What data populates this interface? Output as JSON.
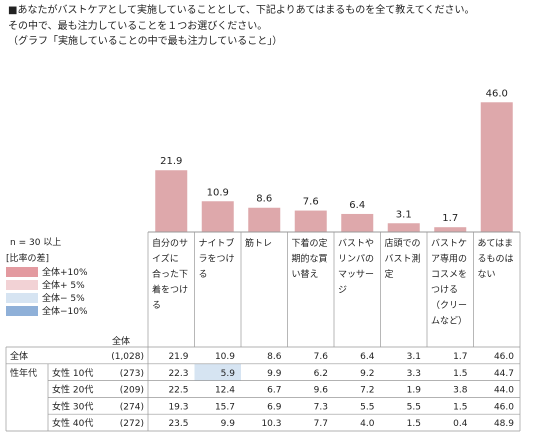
{
  "question": {
    "line1": "■あなたがバストケアとして実施していることとして、下記よりあてはまるものを全て教えてください。",
    "line2": "その中で、最も注力していることを１つお選びください。",
    "line3": "（グラフ「実施していることの中で最も注力していること」）"
  },
  "n_note": "n = 30  以上",
  "legend": {
    "title": "[比率の差]",
    "items": [
      {
        "label": "全体+10%",
        "color": "#e39aa0"
      },
      {
        "label": "全体+ 5%",
        "color": "#f2d2d5"
      },
      {
        "label": "全体− 5%",
        "color": "#d6e4f2"
      },
      {
        "label": "全体−10%",
        "color": "#8fb0d8"
      }
    ]
  },
  "colors": {
    "bar": "#dea8ab",
    "table_border": "#999999",
    "highlight_low5": "#d6e4f2"
  },
  "chart_data": {
    "type": "bar",
    "categories": [
      "自分のサイズに合った下着をつける",
      "ナイトブラをつける",
      "筋トレ",
      "下着の定期的な買い替え",
      "バストやリンパのマッサージ",
      "店頭でのバスト測定",
      "バストケア専用のコスメをつける（クリームなど）",
      "あてはまるものはない"
    ],
    "category_lines": [
      [
        "自分のサ",
        "イズに",
        "合った下",
        "着をつけ",
        "る"
      ],
      [
        "ナイトブ",
        "ラをつけ",
        "る"
      ],
      [
        "筋トレ"
      ],
      [
        "下着の定",
        "期的な買",
        "い替え"
      ],
      [
        "バストや",
        "リンパの",
        "マッサー",
        "ジ"
      ],
      [
        "店頭での",
        "バスト測",
        "定"
      ],
      [
        "バストケ",
        "ア専用の",
        "コスメを",
        "つける",
        "（クリー",
        "ムなど）"
      ],
      [
        "あてはま",
        "るものは",
        "ない"
      ]
    ],
    "values": [
      21.9,
      10.9,
      8.6,
      7.6,
      6.4,
      3.1,
      1.7,
      46.0
    ],
    "value_labels": [
      "21.9",
      "10.9",
      "8.6",
      "7.6",
      "6.4",
      "3.1",
      "1.7",
      "46.0"
    ],
    "ylim": [
      0,
      50
    ]
  },
  "table": {
    "header_total": "全体",
    "group_label": "性年代",
    "rows": [
      {
        "group": "全体",
        "label": "",
        "n": "(1,028)",
        "values": [
          "21.9",
          "10.9",
          "8.6",
          "7.6",
          "6.4",
          "3.1",
          "1.7",
          "46.0"
        ],
        "highlight": [
          null,
          null,
          null,
          null,
          null,
          null,
          null,
          null
        ]
      },
      {
        "group": "性年代",
        "label": "女性 10代",
        "n": "(273)",
        "values": [
          "22.3",
          "5.9",
          "9.9",
          "6.2",
          "9.2",
          "3.3",
          "1.5",
          "44.7"
        ],
        "highlight": [
          null,
          "low5",
          null,
          null,
          null,
          null,
          null,
          null
        ]
      },
      {
        "group": "",
        "label": "女性 20代",
        "n": "(209)",
        "values": [
          "22.5",
          "12.4",
          "6.7",
          "9.6",
          "7.2",
          "1.9",
          "3.8",
          "44.0"
        ],
        "highlight": [
          null,
          null,
          null,
          null,
          null,
          null,
          null,
          null
        ]
      },
      {
        "group": "",
        "label": "女性 30代",
        "n": "(274)",
        "values": [
          "19.3",
          "15.7",
          "6.9",
          "7.3",
          "5.5",
          "5.5",
          "1.5",
          "46.0"
        ],
        "highlight": [
          null,
          null,
          null,
          null,
          null,
          null,
          null,
          null
        ]
      },
      {
        "group": "",
        "label": "女性 40代",
        "n": "(272)",
        "values": [
          "23.5",
          "9.9",
          "10.3",
          "7.7",
          "4.0",
          "1.5",
          "0.4",
          "48.9"
        ],
        "highlight": [
          null,
          null,
          null,
          null,
          null,
          null,
          null,
          null
        ]
      }
    ]
  }
}
